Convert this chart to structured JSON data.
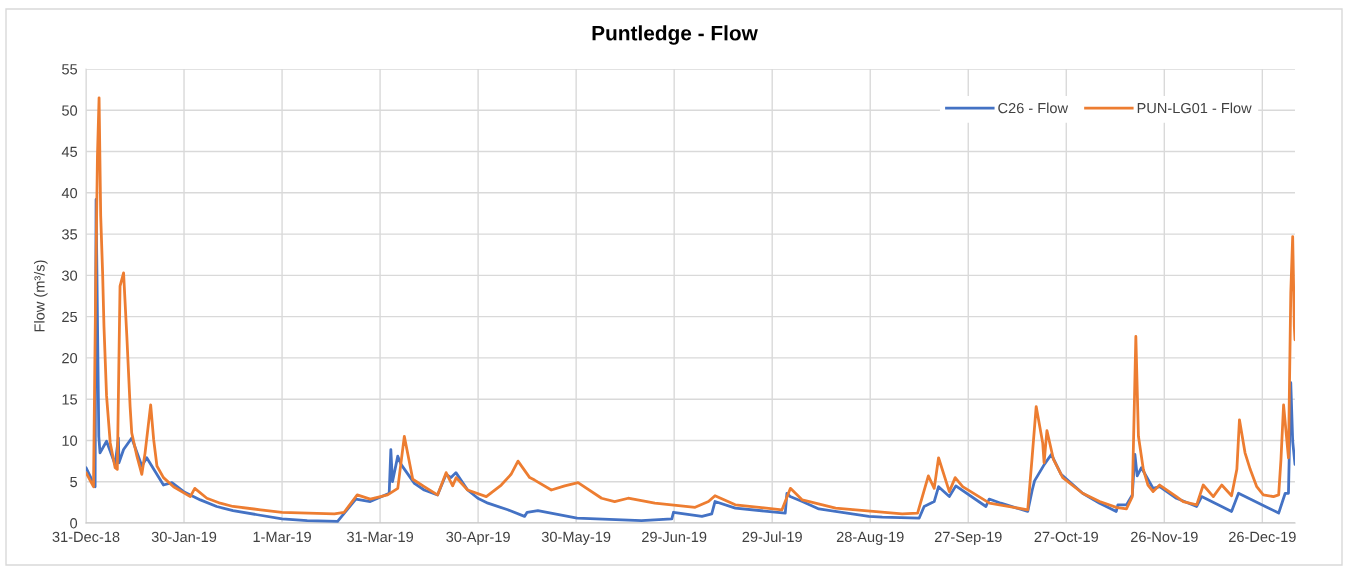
{
  "chart_data": {
    "type": "line",
    "title": "Puntledge - Flow",
    "ylabel": "Flow (m³/s)",
    "xlim": [
      "2018-12-31",
      "2020-01-05"
    ],
    "xticks": [
      {
        "value": "2018-12-31",
        "label": "31-Dec-18"
      },
      {
        "value": "2019-01-30",
        "label": "30-Jan-19"
      },
      {
        "value": "2019-03-01",
        "label": "1-Mar-19"
      },
      {
        "value": "2019-03-31",
        "label": "31-Mar-19"
      },
      {
        "value": "2019-04-30",
        "label": "30-Apr-19"
      },
      {
        "value": "2019-05-30",
        "label": "30-May-19"
      },
      {
        "value": "2019-06-29",
        "label": "29-Jun-19"
      },
      {
        "value": "2019-07-29",
        "label": "29-Jul-19"
      },
      {
        "value": "2019-08-28",
        "label": "28-Aug-19"
      },
      {
        "value": "2019-09-27",
        "label": "27-Sep-19"
      },
      {
        "value": "2019-10-27",
        "label": "27-Oct-19"
      },
      {
        "value": "2019-11-26",
        "label": "26-Nov-19"
      },
      {
        "value": "2019-12-26",
        "label": "26-Dec-19"
      }
    ],
    "ylim": [
      0,
      55
    ],
    "yticks": [
      0,
      5,
      10,
      15,
      20,
      25,
      30,
      35,
      40,
      45,
      50,
      55
    ],
    "grid": true,
    "legend": "top right",
    "series": [
      {
        "name": "C26 - Flow",
        "color": "#4472c4",
        "x": [
          "2018-12-31",
          "2019-01-02T19:00",
          "2019-01-03T02:00",
          "2019-01-03T22:00",
          "2019-01-04T07:00",
          "2019-01-06T07:00",
          "2019-01-08T22:00",
          "2019-01-09T22:00",
          "2019-01-10T02:00",
          "2019-01-11T12:00",
          "2019-01-14",
          "2019-01-17T02:00",
          "2019-01-18T14:00",
          "2019-01-23T17:00",
          "2019-01-26T07:00",
          "2019-01-29T22:00",
          "2019-02-04",
          "2019-02-09",
          "2019-02-14",
          "2019-02-21T10:00",
          "2019-03-01",
          "2019-03-08T17:00",
          "2019-03-18",
          "2019-03-23T14:00",
          "2019-03-28",
          "2019-04-02T19:00",
          "2019-04-03T07:00",
          "2019-04-03T19:00",
          "2019-04-05T10:00",
          "2019-04-06T10:00",
          "2019-04-10T12:00",
          "2019-04-13T12:00",
          "2019-04-17T14:00",
          "2019-04-20T05:00",
          "2019-04-21T17:00",
          "2019-04-23T05:00",
          "2019-04-26T19:00",
          "2019-04-29T22:00",
          "2019-05-03",
          "2019-05-09T02:00",
          "2019-05-14T05:00",
          "2019-05-15",
          "2019-05-18T07:00",
          "2019-05-30T07:00",
          "2019-06-19",
          "2019-06-28T07:00",
          "2019-06-28T19:00",
          "2019-07-07T12:00",
          "2019-07-10T12:00",
          "2019-07-11T12:00",
          "2019-07-17T17:00",
          "2019-08-02",
          "2019-08-02T12:00",
          "2019-08-03T12:00",
          "2019-08-07T05:00",
          "2019-08-12T07:00",
          "2019-08-27T14:00",
          "2019-08-31T17:00",
          "2019-09-12",
          "2019-09-13T12:00",
          "2019-09-16T14:00",
          "2019-09-17T22:00",
          "2019-09-21T05:00",
          "2019-09-23T05:00",
          "2019-10-02T10:00",
          "2019-10-03T10:00",
          "2019-10-07",
          "2019-10-15T05:00",
          "2019-10-16T14:00",
          "2019-10-17T07:00",
          "2019-10-20T07:00",
          "2019-10-22T10:00",
          "2019-10-25T10:00",
          "2019-11-01",
          "2019-11-06T05:00",
          "2019-11-11T07:00",
          "2019-11-11T19:00",
          "2019-11-14T10:00",
          "2019-11-16T05:00",
          "2019-11-17",
          "2019-11-17T17:00",
          "2019-11-19",
          "2019-11-22T14:00",
          "2019-11-24T14:00",
          "2019-11-29T17:00",
          "2019-12-05T22:00",
          "2019-12-07T10:00",
          "2019-12-16T14:00",
          "2019-12-18T17:00",
          "2019-12-31",
          "2020-01-02",
          "2020-01-03",
          "2020-01-03T17:00",
          "2020-01-04T07:00",
          "2020-01-05"
        ],
        "values": [
          6.7,
          4.4,
          39.2,
          10.5,
          8.5,
          9.9,
          7.1,
          10.3,
          7.3,
          8.9,
          10.3,
          6.9,
          7.9,
          4.6,
          4.9,
          3.8,
          2.8,
          2.0,
          1.5,
          1.0,
          0.5,
          0.3,
          0.2,
          2.9,
          2.6,
          3.6,
          8.9,
          5.0,
          8.1,
          7.1,
          4.8,
          4.0,
          3.4,
          5.9,
          5.5,
          6.1,
          4.0,
          3.0,
          2.4,
          1.6,
          0.8,
          1.3,
          1.5,
          0.6,
          0.3,
          0.5,
          1.3,
          0.8,
          1.1,
          2.6,
          1.8,
          1.2,
          3.6,
          3.2,
          2.6,
          1.7,
          0.8,
          0.7,
          0.6,
          2.0,
          2.6,
          4.4,
          3.2,
          4.5,
          2.0,
          2.9,
          2.4,
          1.4,
          4.0,
          5.1,
          7.1,
          8.3,
          5.9,
          3.6,
          2.4,
          1.4,
          2.2,
          2.2,
          3.4,
          8.3,
          5.7,
          6.7,
          4.2,
          4.4,
          3.0,
          2.0,
          3.2,
          1.4,
          3.6,
          1.2,
          3.6,
          3.6,
          17.0,
          9.9,
          7.1
        ]
      },
      {
        "name": "PUN-LG01 - Flow",
        "color": "#ed7d31",
        "x": [
          "2018-12-31",
          "2019-01-02T07:00",
          "2019-01-03",
          "2019-01-03T12:00",
          "2019-01-04",
          "2019-01-04T12:00",
          "2019-01-05T02:00",
          "2019-01-05T12:00",
          "2019-01-06T07:00",
          "2019-01-07T10:00",
          "2019-01-08T22:00",
          "2019-01-09T14:00",
          "2019-01-10T10:00",
          "2019-01-11T12:00",
          "2019-01-12T12:00",
          "2019-01-13T12:00",
          "2019-01-14",
          "2019-01-15T14:00",
          "2019-01-17T02:00",
          "2019-01-18T02:00",
          "2019-01-19T19:00",
          "2019-01-20T17:00",
          "2019-01-21T17:00",
          "2019-01-23T17:00",
          "2019-01-26T19:00",
          "2019-01-31T22:00",
          "2019-02-02T07:00",
          "2019-02-06",
          "2019-02-10T02:00",
          "2019-02-14",
          "2019-02-22T10:00",
          "2019-03-01",
          "2019-03-17",
          "2019-03-20",
          "2019-03-24",
          "2019-03-28",
          "2019-04-02T07:00",
          "2019-04-05T10:00",
          "2019-04-07T10:00",
          "2019-04-10",
          "2019-04-13T12:00",
          "2019-04-17T14:00",
          "2019-04-20T05:00",
          "2019-04-22T05:00",
          "2019-04-23T07:00",
          "2019-04-26T19:00",
          "2019-05-02T12:00",
          "2019-05-07T02:00",
          "2019-05-10T02:00",
          "2019-05-12T05:00",
          "2019-05-15T19:00",
          "2019-05-17T07:00",
          "2019-05-22T10:00",
          "2019-05-26T12:00",
          "2019-05-30T14:00",
          "2019-06-06T19:00",
          "2019-06-10T19:00",
          "2019-06-14T22:00",
          "2019-06-23T02:00",
          "2019-07-05T10:00",
          "2019-07-09T12:00",
          "2019-07-11T12:00",
          "2019-07-17T17:00",
          "2019-08-01",
          "2019-08-03T14:00",
          "2019-08-07T05:00",
          "2019-08-17T10:00",
          "2019-09-06T19:00",
          "2019-09-11T12:00",
          "2019-09-14T19:00",
          "2019-09-16T14:00",
          "2019-09-17T22:00",
          "2019-09-21T05:00",
          "2019-09-23",
          "2019-09-25T07:00",
          "2019-10-03T12:00",
          "2019-10-15T05:00",
          "2019-10-16T12:00",
          "2019-10-17T19:00",
          "2019-10-19T19:00",
          "2019-10-20T05:00",
          "2019-10-21T02:00",
          "2019-10-23T02:00",
          "2019-10-25T22:00",
          "2019-11-01",
          "2019-11-06T05:00",
          "2019-11-11T07:00",
          "2019-11-14T10:00",
          "2019-11-16T05:00",
          "2019-11-17T07:00",
          "2019-11-18T02:00",
          "2019-11-19T14:00",
          "2019-11-21",
          "2019-11-22T14:00",
          "2019-11-24T14:00",
          "2019-11-29T17:00",
          "2019-12-01T19:00",
          "2019-12-05T22:00",
          "2019-12-07T22:00",
          "2019-12-11",
          "2019-12-13T14:00",
          "2019-12-16T14:00",
          "2019-12-18T05:00",
          "2019-12-19",
          "2019-12-20T17:00",
          "2019-12-22T07:00",
          "2019-12-24T07:00",
          "2019-12-26T07:00",
          "2019-12-29T10:00",
          "2019-12-31",
          "2019-12-31T17:00",
          "2020-01-01T12:00",
          "2020-01-03",
          "2020-01-03T17:00",
          "2020-01-04T07:00",
          "2020-01-04T19:00",
          "2020-01-05"
        ],
        "values": [
          6.1,
          4.4,
          29.9,
          44.4,
          51.5,
          37.2,
          30.3,
          23.8,
          15.4,
          9.7,
          6.7,
          6.5,
          28.7,
          30.3,
          22.6,
          14.1,
          10.9,
          8.1,
          5.9,
          8.5,
          14.3,
          10.1,
          6.9,
          5.5,
          4.4,
          3.2,
          4.2,
          3.0,
          2.4,
          2.0,
          1.6,
          1.3,
          1.1,
          1.3,
          3.4,
          2.9,
          3.4,
          4.2,
          10.5,
          5.3,
          4.4,
          3.4,
          6.1,
          4.5,
          5.5,
          4.0,
          3.2,
          4.6,
          5.9,
          7.5,
          5.5,
          5.2,
          4.0,
          4.5,
          4.9,
          3.0,
          2.6,
          3.0,
          2.4,
          1.9,
          2.6,
          3.3,
          2.2,
          1.6,
          4.2,
          2.8,
          1.8,
          1.1,
          1.2,
          5.7,
          4.2,
          7.9,
          3.8,
          5.5,
          4.4,
          2.4,
          1.6,
          7.7,
          14.1,
          9.7,
          7.3,
          11.2,
          7.7,
          5.5,
          3.6,
          2.6,
          1.9,
          1.7,
          3.2,
          22.6,
          10.5,
          6.5,
          4.6,
          3.8,
          4.6,
          3.2,
          2.6,
          2.2,
          4.6,
          3.2,
          4.6,
          3.3,
          6.5,
          12.5,
          8.5,
          6.5,
          4.4,
          3.4,
          3.2,
          3.4,
          7.7,
          14.3,
          7.9,
          27.9,
          34.7,
          23.8,
          22.2
        ]
      }
    ]
  }
}
